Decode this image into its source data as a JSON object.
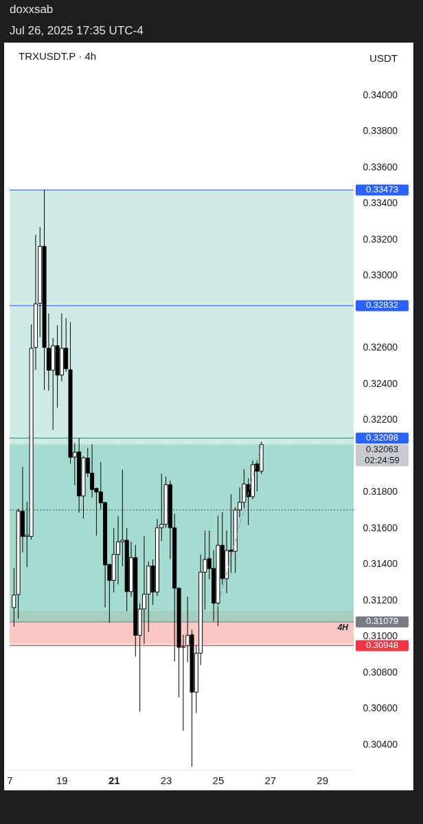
{
  "chart_data": {
    "type": "candlestick",
    "title": "TRXUSDT.P · 4h",
    "ylabel": "USDT",
    "color": "#000000",
    "annotations": [
      "doxxsab",
      "Jul 26, 2025 17:35 UTC-4"
    ],
    "x": [
      "2025-07-17T04:00",
      "2025-07-17T08:00",
      "2025-07-17T12:00",
      "2025-07-17T16:00",
      "2025-07-17T20:00",
      "2025-07-18T00:00",
      "2025-07-18T04:00",
      "2025-07-18T08:00",
      "2025-07-18T12:00",
      "2025-07-18T16:00",
      "2025-07-18T20:00",
      "2025-07-19T00:00",
      "2025-07-19T04:00",
      "2025-07-19T08:00",
      "2025-07-19T12:00",
      "2025-07-19T16:00",
      "2025-07-19T20:00",
      "2025-07-20T00:00",
      "2025-07-20T04:00",
      "2025-07-20T08:00",
      "2025-07-20T12:00",
      "2025-07-20T16:00",
      "2025-07-20T20:00",
      "2025-07-21T00:00",
      "2025-07-21T04:00",
      "2025-07-21T08:00",
      "2025-07-21T12:00",
      "2025-07-21T16:00",
      "2025-07-21T20:00",
      "2025-07-22T00:00",
      "2025-07-22T04:00",
      "2025-07-22T08:00",
      "2025-07-22T12:00",
      "2025-07-22T16:00",
      "2025-07-22T20:00",
      "2025-07-23T00:00",
      "2025-07-23T04:00",
      "2025-07-23T08:00",
      "2025-07-23T12:00",
      "2025-07-23T16:00",
      "2025-07-23T20:00",
      "2025-07-24T00:00",
      "2025-07-24T04:00",
      "2025-07-24T08:00",
      "2025-07-24T12:00",
      "2025-07-24T16:00",
      "2025-07-24T20:00",
      "2025-07-25T00:00",
      "2025-07-25T04:00",
      "2025-07-25T08:00",
      "2025-07-25T12:00",
      "2025-07-25T16:00",
      "2025-07-25T20:00",
      "2025-07-26T00:00",
      "2025-07-26T04:00",
      "2025-07-26T08:00",
      "2025-07-26T12:00",
      "2025-07-26T16:00"
    ],
    "ohlc": [
      [
        0.31158,
        0.31377,
        0.31053,
        0.31228
      ],
      [
        0.31231,
        0.31707,
        0.31097,
        0.31693
      ],
      [
        0.31693,
        0.31938,
        0.31465,
        0.31553
      ],
      [
        0.31553,
        0.31745,
        0.31383,
        0.3156
      ],
      [
        0.31553,
        0.32728,
        0.31535,
        0.32596
      ],
      [
        0.326,
        0.33225,
        0.32477,
        0.32842
      ],
      [
        0.32845,
        0.33267,
        0.32658,
        0.33161
      ],
      [
        0.33161,
        0.33473,
        0.32365,
        0.326
      ],
      [
        0.32596,
        0.32789,
        0.3236,
        0.32474
      ],
      [
        0.32474,
        0.32653,
        0.32144,
        0.3261
      ],
      [
        0.3261,
        0.32723,
        0.32266,
        0.32447
      ],
      [
        0.32447,
        0.32789,
        0.32413,
        0.32596
      ],
      [
        0.32596,
        0.32763,
        0.32465,
        0.32482
      ],
      [
        0.32477,
        0.32741,
        0.31956,
        0.31991
      ],
      [
        0.31993,
        0.32071,
        0.31837,
        0.32019
      ],
      [
        0.32022,
        0.32098,
        0.31685,
        0.31777
      ],
      [
        0.31777,
        0.31997,
        0.31652,
        0.31989
      ],
      [
        0.31987,
        0.32044,
        0.31882,
        0.31904
      ],
      [
        0.31904,
        0.32063,
        0.31768,
        0.31813
      ],
      [
        0.31819,
        0.31824,
        0.31558,
        0.31799
      ],
      [
        0.318,
        0.31967,
        0.31704,
        0.31739
      ],
      [
        0.31741,
        0.31745,
        0.3116,
        0.31395
      ],
      [
        0.31398,
        0.314,
        0.31074,
        0.31309
      ],
      [
        0.31309,
        0.31599,
        0.31243,
        0.31453
      ],
      [
        0.31453,
        0.31665,
        0.31287,
        0.31523
      ],
      [
        0.31523,
        0.31923,
        0.31387,
        0.31532
      ],
      [
        0.31532,
        0.31599,
        0.31138,
        0.31247
      ],
      [
        0.31247,
        0.31523,
        0.31218,
        0.31436
      ],
      [
        0.31436,
        0.31506,
        0.30887,
        0.31005
      ],
      [
        0.31005,
        0.31183,
        0.30582,
        0.31151
      ],
      [
        0.31151,
        0.31554,
        0.30957,
        0.31233
      ],
      [
        0.31233,
        0.31414,
        0.31024,
        0.31389
      ],
      [
        0.31389,
        0.31425,
        0.31173,
        0.31245
      ],
      [
        0.31245,
        0.3165,
        0.31224,
        0.31601
      ],
      [
        0.31601,
        0.319,
        0.31527,
        0.3162
      ],
      [
        0.3162,
        0.31885,
        0.31601,
        0.3184
      ],
      [
        0.3184,
        0.31862,
        0.31427,
        0.31601
      ],
      [
        0.31601,
        0.31679,
        0.30859,
        0.31266
      ],
      [
        0.31266,
        0.3127,
        0.30661,
        0.30938
      ],
      [
        0.30938,
        0.31008,
        0.30476,
        0.30942
      ],
      [
        0.30947,
        0.31218,
        0.30855,
        0.31004
      ],
      [
        0.31008,
        0.31036,
        0.30277,
        0.3069
      ],
      [
        0.3069,
        0.30951,
        0.30575,
        0.30906
      ],
      [
        0.30906,
        0.31453,
        0.3084,
        0.31355
      ],
      [
        0.31355,
        0.31586,
        0.31147,
        0.31425
      ],
      [
        0.3143,
        0.31586,
        0.31315,
        0.31374
      ],
      [
        0.31376,
        0.31478,
        0.31078,
        0.31183
      ],
      [
        0.31183,
        0.31669,
        0.31056,
        0.31504
      ],
      [
        0.31504,
        0.31688,
        0.31285,
        0.31319
      ],
      [
        0.31319,
        0.31586,
        0.31239,
        0.31475
      ],
      [
        0.31478,
        0.31787,
        0.31351,
        0.3147
      ],
      [
        0.3147,
        0.31713,
        0.31351,
        0.317
      ],
      [
        0.317,
        0.31824,
        0.31659,
        0.31742
      ],
      [
        0.31742,
        0.31925,
        0.31707,
        0.31844
      ],
      [
        0.3184,
        0.31875,
        0.31615,
        0.31773
      ],
      [
        0.31773,
        0.31974,
        0.31758,
        0.31951
      ],
      [
        0.31955,
        0.31977,
        0.31802,
        0.31914
      ],
      [
        0.31914,
        0.32078,
        0.31898,
        0.32063
      ]
    ],
    "series": [
      {
        "type": "line",
        "x": [
          "2025-07-24T20:00",
          "2025-07-26T16:00"
        ],
        "values": [
          0.31079,
          0.32063
        ],
        "color": "#9598a1",
        "line_style": "dashed"
      }
    ],
    "xlim": [
      "2025-07-17T00:00",
      "2025-07-30T05:00"
    ],
    "xticks": [
      {
        "value": "2025-07-17",
        "label": "7"
      },
      {
        "value": "2025-07-19",
        "label": "19"
      },
      {
        "value": "2025-07-21",
        "label": "21"
      },
      {
        "value": "2025-07-23",
        "label": "23"
      },
      {
        "value": "2025-07-25",
        "label": "25"
      },
      {
        "value": "2025-07-27",
        "label": "27"
      },
      {
        "value": "2025-07-29",
        "label": "29"
      }
    ],
    "ylim": [
      0.3026,
      0.3429
    ],
    "yticks": [
      {
        "value": 0.304,
        "label": "0.30400"
      },
      {
        "value": 0.306,
        "label": "0.30600"
      },
      {
        "value": 0.308,
        "label": "0.30800"
      },
      {
        "value": 0.31,
        "label": "0.31000"
      },
      {
        "value": 0.312,
        "label": "0.31200"
      },
      {
        "value": 0.314,
        "label": "0.31400"
      },
      {
        "value": 0.316,
        "label": "0.31600"
      },
      {
        "value": 0.318,
        "label": "0.31800"
      },
      {
        "value": 0.322,
        "label": "0.32200"
      },
      {
        "value": 0.324,
        "label": "0.32400"
      },
      {
        "value": 0.326,
        "label": "0.32600"
      },
      {
        "value": 0.33,
        "label": "0.33000"
      },
      {
        "value": 0.332,
        "label": "0.33200"
      },
      {
        "value": 0.334,
        "label": "0.33400"
      },
      {
        "value": 0.336,
        "label": "0.33600"
      },
      {
        "value": 0.338,
        "label": "0.33800"
      },
      {
        "value": 0.34,
        "label": "0.34000"
      }
    ],
    "bands": [
      {
        "axis": "y",
        "from": 0.3096,
        "to": 0.3114,
        "label": "4H",
        "color": "#f7a072"
      },
      {
        "axis": "y",
        "from": 0.31079,
        "to": 0.33473,
        "color": "#089981"
      },
      {
        "axis": "y",
        "from": 0.31079,
        "to": 0.32063,
        "color": "#089981"
      },
      {
        "axis": "y",
        "from": 0.30948,
        "to": 0.31079,
        "color": "#f23645"
      }
    ],
    "ref_lines": [
      {
        "axis": "y",
        "value": 0.33473,
        "label": "0.33473",
        "color": "#2962ff"
      },
      {
        "axis": "y",
        "value": 0.32832,
        "label": "0.32832",
        "color": "#2962ff"
      },
      {
        "axis": "y",
        "value": 0.32098,
        "label": "0.32098",
        "color": "#2962ff"
      },
      {
        "axis": "y",
        "value": 0.32063,
        "label": "0.32063\n02:24:59",
        "color": "#c8cad0",
        "line_style": "dotted"
      },
      {
        "axis": "y",
        "value": 0.317,
        "color": "#131722",
        "line_style": "dotted"
      },
      {
        "axis": "y",
        "value": 0.31079,
        "label": "0.31079",
        "color": "#787b86"
      },
      {
        "axis": "y",
        "value": 0.30948,
        "label": "0.30948",
        "color": "#f23645"
      }
    ],
    "grid": false
  }
}
